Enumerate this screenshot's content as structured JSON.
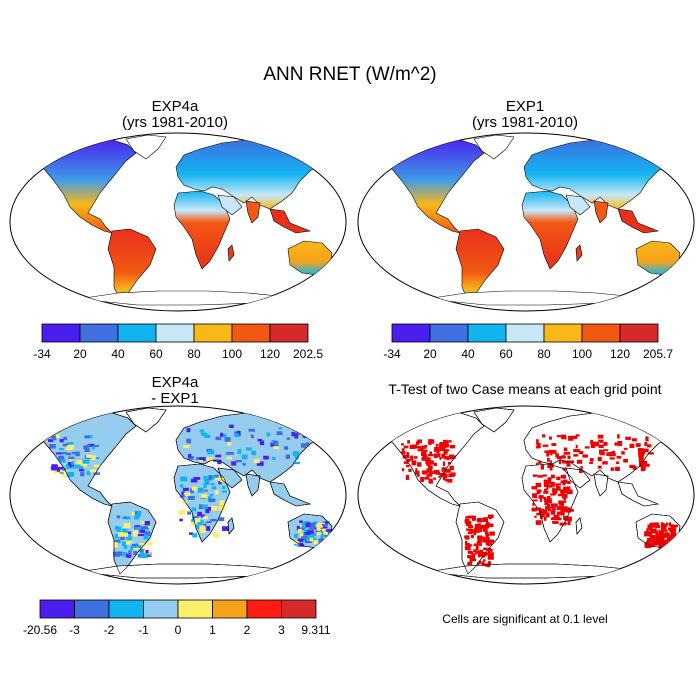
{
  "main_title": "ANN RNET (W/m^2)",
  "panels": [
    {
      "id": "exp4a",
      "title_line1": "EXP4a",
      "title_line2": "(yrs 1981-2010)"
    },
    {
      "id": "exp1",
      "title_line1": "EXP1",
      "title_line2": "(yrs 1981-2010)"
    },
    {
      "id": "diff",
      "title_line1": "EXP4a",
      "title_line2": "- EXP1"
    },
    {
      "id": "ttest",
      "title_line1": "T-Test of two Case means at each grid point",
      "title_line2": ""
    }
  ],
  "colorbars": {
    "exp4a": {
      "colors": [
        "#4b1ef0",
        "#3f6fe0",
        "#12b4f0",
        "#c8e8f8",
        "#f8b81a",
        "#f25814",
        "#d42a2a"
      ],
      "labels": [
        "-34",
        "20",
        "40",
        "60",
        "80",
        "100",
        "120",
        "202.5"
      ]
    },
    "exp1": {
      "colors": [
        "#4b1ef0",
        "#3f6fe0",
        "#12b4f0",
        "#c8e8f8",
        "#f8b81a",
        "#f25814",
        "#d42a2a"
      ],
      "labels": [
        "-34",
        "20",
        "40",
        "60",
        "80",
        "100",
        "120",
        "205.7"
      ]
    },
    "diff": {
      "colors": [
        "#4b1ef0",
        "#3f6fe0",
        "#12b4f0",
        "#96cdee",
        "#fcef6a",
        "#f6a21a",
        "#ff1c14",
        "#d42a2a"
      ],
      "labels": [
        "-20.56",
        "-3",
        "-2",
        "-1",
        "0",
        "1",
        "2",
        "3",
        "9.311"
      ]
    }
  },
  "significance_note": "Cells are significant at 0.1 level",
  "colors": {
    "ocean": "#ffffff",
    "coast": "#000000",
    "significant": "#ee0000"
  }
}
